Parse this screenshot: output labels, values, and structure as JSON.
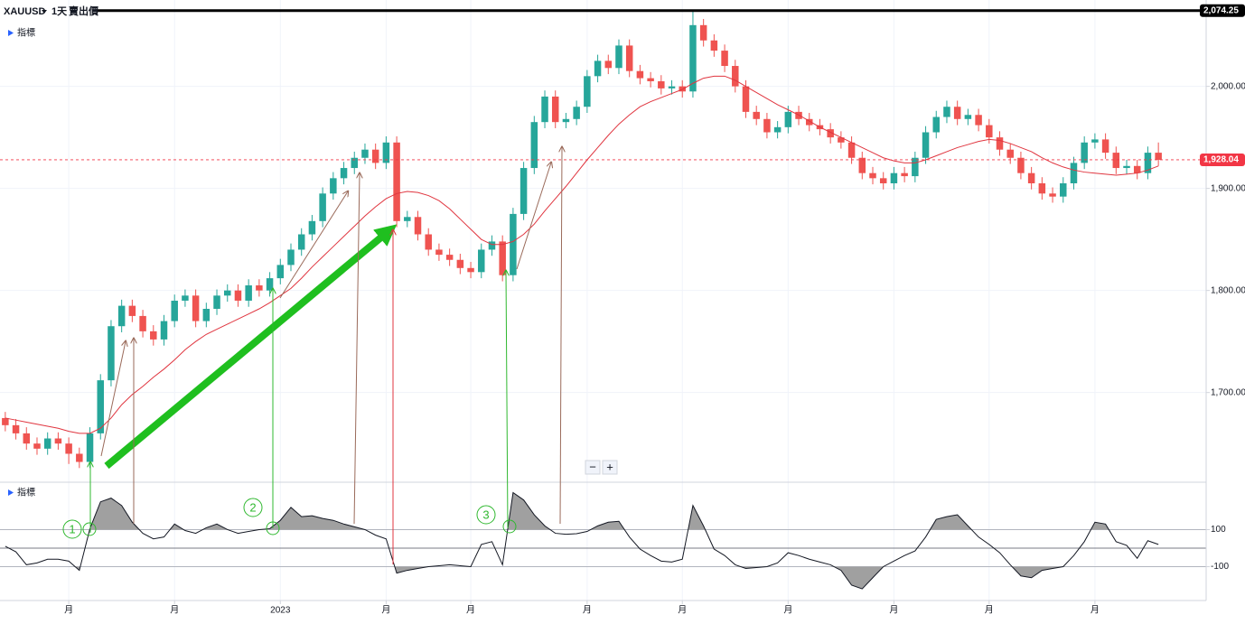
{
  "header": {
    "symbol": "XAUUSD",
    "interval": "1天",
    "price_type": "賣出價"
  },
  "controls": [
    "−",
    "+"
  ],
  "annotations": [
    "1",
    "2",
    "3"
  ],
  "chart_data": [
    {
      "type": "candlestick",
      "label": "指標",
      "categories": [
        null,
        null,
        null,
        null,
        null,
        null,
        "月",
        null,
        null,
        null,
        null,
        null,
        null,
        null,
        null,
        null,
        "月",
        null,
        null,
        null,
        null,
        null,
        null,
        null,
        null,
        null,
        "2023",
        null,
        null,
        null,
        null,
        null,
        null,
        null,
        null,
        null,
        "月",
        null,
        null,
        null,
        null,
        null,
        null,
        null,
        "月",
        null,
        null,
        null,
        null,
        null,
        null,
        null,
        null,
        null,
        null,
        "月",
        null,
        null,
        null,
        null,
        null,
        null,
        null,
        null,
        "月",
        null,
        null,
        null,
        null,
        null,
        null,
        null,
        null,
        null,
        "月",
        null,
        null,
        null,
        null,
        null,
        null,
        null,
        null,
        null,
        "月",
        null,
        null,
        null,
        null,
        null,
        null,
        null,
        null,
        "月",
        null,
        null,
        null,
        null,
        null,
        null,
        null,
        null,
        null,
        "月",
        null,
        null,
        null,
        null,
        null,
        null
      ],
      "open": [
        1675,
        1668,
        1660,
        1650,
        1645,
        1655,
        1650,
        1640,
        1632,
        1660,
        1712,
        1765,
        1785,
        1775,
        1760,
        1752,
        1770,
        1790,
        1795,
        1770,
        1782,
        1795,
        1800,
        1790,
        1805,
        1800,
        1812,
        1825,
        1840,
        1855,
        1868,
        1895,
        1910,
        1920,
        1930,
        1938,
        1925,
        1945,
        1868,
        1872,
        1855,
        1840,
        1835,
        1830,
        1822,
        1818,
        1840,
        1848,
        1815,
        1875,
        1920,
        1965,
        1990,
        1965,
        1968,
        1980,
        2010,
        2025,
        2018,
        2040,
        2015,
        2008,
        2005,
        1998,
        2000,
        1995,
        2060,
        2045,
        2035,
        2020,
        2000,
        1975,
        1968,
        1955,
        1960,
        1975,
        1968,
        1962,
        1958,
        1950,
        1945,
        1930,
        1915,
        1910,
        1905,
        1915,
        1912,
        1930,
        1955,
        1970,
        1980,
        1968,
        1972,
        1962,
        1950,
        1938,
        1930,
        1915,
        1905,
        1895,
        1892,
        1905,
        1925,
        1945,
        1948,
        1935,
        1920,
        1922,
        1915,
        1935
      ],
      "high": [
        1681,
        1674,
        1666,
        1656,
        1661,
        1661,
        1656,
        1646,
        1666,
        1718,
        1771,
        1791,
        1791,
        1781,
        1766,
        1776,
        1796,
        1801,
        1801,
        1788,
        1801,
        1806,
        1806,
        1811,
        1811,
        1818,
        1831,
        1846,
        1861,
        1874,
        1901,
        1916,
        1926,
        1936,
        1944,
        1944,
        1951,
        1951,
        1878,
        1878,
        1861,
        1846,
        1841,
        1836,
        1828,
        1846,
        1854,
        1854,
        1881,
        1926,
        1971,
        1996,
        1996,
        1974,
        1986,
        2016,
        2031,
        2031,
        2046,
        2046,
        2021,
        2014,
        2011,
        2006,
        2006,
        2074,
        2066,
        2051,
        2041,
        2026,
        2006,
        1981,
        1974,
        1966,
        1981,
        1981,
        1974,
        1968,
        1964,
        1956,
        1951,
        1936,
        1921,
        1916,
        1921,
        1921,
        1936,
        1961,
        1976,
        1986,
        1986,
        1978,
        1978,
        1968,
        1956,
        1944,
        1936,
        1921,
        1911,
        1901,
        1911,
        1931,
        1951,
        1954,
        1954,
        1941,
        1928,
        1928,
        1941,
        1945
      ],
      "low": [
        1662,
        1654,
        1644,
        1639,
        1639,
        1644,
        1630,
        1626,
        1626,
        1654,
        1706,
        1759,
        1769,
        1754,
        1746,
        1746,
        1764,
        1784,
        1764,
        1764,
        1776,
        1789,
        1784,
        1784,
        1794,
        1794,
        1806,
        1819,
        1834,
        1849,
        1862,
        1889,
        1904,
        1914,
        1924,
        1919,
        1919,
        1862,
        1862,
        1849,
        1834,
        1829,
        1824,
        1816,
        1812,
        1812,
        1834,
        1809,
        1809,
        1869,
        1914,
        1959,
        1959,
        1959,
        1962,
        1974,
        2004,
        2012,
        2012,
        2009,
        2002,
        1999,
        1992,
        1992,
        1989,
        1989,
        2039,
        2029,
        2014,
        1994,
        1969,
        1962,
        1949,
        1949,
        1954,
        1962,
        1956,
        1952,
        1944,
        1939,
        1924,
        1909,
        1904,
        1899,
        1899,
        1906,
        1906,
        1924,
        1949,
        1964,
        1962,
        1962,
        1956,
        1944,
        1932,
        1924,
        1909,
        1899,
        1889,
        1886,
        1886,
        1899,
        1919,
        1939,
        1929,
        1914,
        1914,
        1909,
        1909,
        1922
      ],
      "close": [
        1668,
        1660,
        1650,
        1645,
        1655,
        1650,
        1640,
        1632,
        1660,
        1712,
        1765,
        1785,
        1775,
        1760,
        1752,
        1770,
        1790,
        1795,
        1770,
        1782,
        1795,
        1800,
        1790,
        1805,
        1800,
        1812,
        1825,
        1840,
        1855,
        1868,
        1895,
        1910,
        1920,
        1930,
        1938,
        1925,
        1945,
        1868,
        1872,
        1855,
        1840,
        1835,
        1830,
        1822,
        1818,
        1840,
        1848,
        1815,
        1875,
        1920,
        1965,
        1990,
        1965,
        1968,
        1980,
        2010,
        2025,
        2018,
        2040,
        2015,
        2008,
        2005,
        1998,
        2000,
        1995,
        2060,
        2045,
        2035,
        2020,
        2000,
        1975,
        1968,
        1955,
        1960,
        1975,
        1968,
        1962,
        1958,
        1950,
        1945,
        1930,
        1915,
        1910,
        1905,
        1915,
        1912,
        1930,
        1955,
        1970,
        1980,
        1968,
        1972,
        1962,
        1950,
        1938,
        1930,
        1915,
        1905,
        1895,
        1892,
        1905,
        1925,
        1945,
        1948,
        1935,
        1920,
        1922,
        1915,
        1935,
        1928
      ],
      "up_color": "#26a69a",
      "down_color": "#ef5350",
      "overlay": {
        "color": "#e0353f",
        "values": [
          1675,
          1673,
          1671,
          1669,
          1667,
          1665,
          1662,
          1660,
          1660,
          1665,
          1675,
          1688,
          1698,
          1706,
          1715,
          1723,
          1732,
          1742,
          1750,
          1757,
          1762,
          1767,
          1772,
          1777,
          1782,
          1788,
          1795,
          1802,
          1812,
          1823,
          1833,
          1843,
          1853,
          1863,
          1873,
          1882,
          1890,
          1895,
          1897,
          1896,
          1893,
          1888,
          1880,
          1870,
          1860,
          1850,
          1845,
          1845,
          1848,
          1855,
          1865,
          1878,
          1890,
          1902,
          1915,
          1928,
          1940,
          1952,
          1963,
          1972,
          1980,
          1985,
          1989,
          1993,
          1997,
          2003,
          2008,
          2010,
          2010,
          2006,
          2000,
          1994,
          1988,
          1982,
          1977,
          1972,
          1966,
          1960,
          1955,
          1950,
          1945,
          1940,
          1935,
          1930,
          1927,
          1925,
          1925,
          1928,
          1932,
          1936,
          1940,
          1943,
          1946,
          1948,
          1947,
          1944,
          1940,
          1936,
          1930,
          1925,
          1921,
          1918,
          1916,
          1915,
          1914,
          1913,
          1914,
          1915,
          1918,
          1922
        ]
      },
      "ylim": [
        1613,
        2074
      ],
      "yticks": [
        {
          "value": 2000,
          "label": "2,000.00"
        },
        {
          "value": 1900,
          "label": "1,900.00"
        },
        {
          "value": 1800,
          "label": "1,800.00"
        },
        {
          "value": 1700,
          "label": "1,700.00"
        }
      ],
      "grid": true,
      "price_lines": [
        {
          "value": 2074.25,
          "label": "2,074.25",
          "color": "#000000",
          "dashed": false
        },
        {
          "value": 1928.04,
          "label": "1,928.04",
          "color": "#f23645",
          "dashed": true
        }
      ]
    },
    {
      "type": "line",
      "label": "指標",
      "color": "#131722",
      "fill_color": "#a0a0a0",
      "values": [
        10,
        -20,
        -90,
        -80,
        -60,
        -60,
        -70,
        -120,
        105,
        250,
        270,
        230,
        140,
        80,
        50,
        60,
        130,
        95,
        80,
        110,
        130,
        100,
        80,
        90,
        100,
        105,
        150,
        220,
        170,
        175,
        160,
        150,
        130,
        115,
        100,
        70,
        50,
        -135,
        -120,
        -110,
        -100,
        -95,
        -90,
        -95,
        -100,
        20,
        35,
        -90,
        300,
        260,
        180,
        120,
        80,
        75,
        78,
        90,
        120,
        140,
        145,
        60,
        -5,
        -40,
        -70,
        -75,
        -60,
        230,
        120,
        -5,
        -40,
        -90,
        -110,
        -105,
        -100,
        -80,
        -25,
        -40,
        -60,
        -75,
        -90,
        -120,
        -200,
        -220,
        -160,
        -100,
        -70,
        -40,
        -15,
        60,
        155,
        170,
        180,
        120,
        60,
        20,
        -25,
        -90,
        -150,
        -160,
        -120,
        -110,
        -100,
        -40,
        35,
        140,
        130,
        35,
        15,
        -55,
        40,
        20
      ],
      "ylim": [
        -283,
        351
      ],
      "yticks": [
        100,
        -100
      ],
      "grid": true
    }
  ]
}
